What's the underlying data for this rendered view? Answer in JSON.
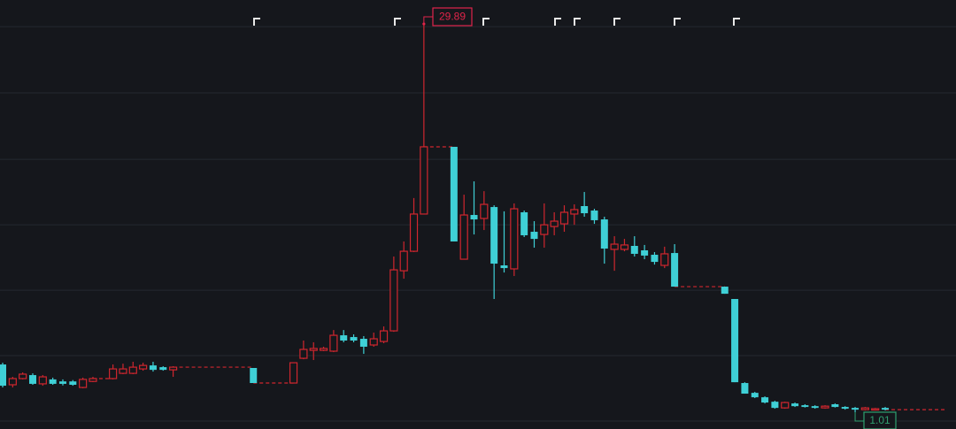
{
  "chart_data": {
    "type": "candlestick",
    "categories": [
      null,
      null,
      null,
      null,
      null,
      null,
      null,
      null,
      null,
      null,
      null,
      null,
      null,
      null,
      null,
      null,
      null,
      null,
      null,
      null,
      null,
      null,
      null,
      null,
      null,
      null,
      null,
      null,
      null,
      null,
      null,
      null,
      null,
      null,
      null,
      null,
      null,
      null,
      null,
      null,
      null,
      null,
      null,
      null,
      null,
      null,
      null,
      null,
      null,
      null,
      null,
      null,
      null,
      null,
      null,
      null,
      null,
      null,
      null,
      null,
      null,
      null,
      null,
      null,
      null,
      null,
      null,
      null,
      null,
      null,
      null,
      null,
      null,
      null,
      null,
      null,
      null,
      null,
      null,
      null,
      null,
      null,
      null,
      null,
      null,
      null,
      null,
      null,
      null,
      null,
      null,
      null,
      null,
      null,
      null
    ],
    "open": [
      4.56,
      3.05,
      3.51,
      3.77,
      3.12,
      3.45,
      3.3,
      3.3,
      2.85,
      3.3,
      null,
      3.51,
      3.9,
      3.9,
      4.23,
      4.49,
      4.36,
      4.16,
      null,
      null,
      null,
      null,
      null,
      null,
      null,
      4.3,
      null,
      null,
      null,
      3.18,
      5.02,
      5.61,
      5.61,
      5.55,
      6.73,
      6.6,
      6.47,
      6.01,
      6.27,
      7.06,
      11.53,
      12.98,
      15.75,
      null,
      null,
      20.75,
      12.39,
      15.68,
      15.42,
      16.27,
      11.93,
      11.67,
      15.88,
      14.43,
      14.23,
      14.82,
      15.02,
      15.75,
      16.34,
      16.01,
      15.35,
      13.12,
      13.12,
      13.38,
      13.05,
      12.72,
      11.93,
      12.85,
      null,
      null,
      null,
      null,
      10.35,
      9.43,
      3.18,
      2.45,
      2.12,
      1.79,
      1.33,
      1.66,
      1.53,
      1.46,
      1.33,
      1.6,
      1.4,
      1.33,
      1.2,
      1.2,
      1.33,
      null,
      null,
      null,
      null,
      null,
      null
    ],
    "high": [
      4.69,
      3.64,
      3.97,
      3.9,
      3.77,
      3.58,
      3.45,
      3.4,
      3.58,
      3.64,
      null,
      4.56,
      4.62,
      4.76,
      4.69,
      4.76,
      4.43,
      4.43,
      null,
      null,
      null,
      null,
      null,
      null,
      null,
      4.3,
      null,
      null,
      null,
      4.69,
      6.34,
      6.21,
      5.88,
      7.12,
      7.12,
      6.8,
      6.67,
      6.93,
      7.39,
      12.59,
      13.71,
      16.94,
      29.89,
      null,
      null,
      20.75,
      17.19,
      18.18,
      17.45,
      16.4,
      15.95,
      16.54,
      16.01,
      15.22,
      16.54,
      15.88,
      16.4,
      16.47,
      17.39,
      16.14,
      15.55,
      14.1,
      13.9,
      14.1,
      13.45,
      12.92,
      13.32,
      13.51,
      null,
      null,
      null,
      null,
      10.35,
      9.43,
      3.24,
      2.52,
      2.19,
      1.86,
      1.79,
      1.73,
      1.6,
      1.53,
      1.53,
      1.66,
      1.46,
      1.4,
      1.4,
      1.33,
      1.4,
      null,
      null,
      null,
      null,
      null,
      null
    ],
    "low": [
      2.85,
      2.85,
      3.45,
      3.05,
      2.98,
      3.05,
      3.0,
      2.98,
      2.79,
      3.25,
      null,
      3.45,
      3.84,
      3.84,
      4.1,
      4.03,
      4.1,
      3.64,
      null,
      null,
      null,
      null,
      null,
      null,
      null,
      3.18,
      null,
      null,
      null,
      3.18,
      4.95,
      4.89,
      5.55,
      5.48,
      6.21,
      6.21,
      5.35,
      5.88,
      6.14,
      6.99,
      10.94,
      12.92,
      15.75,
      null,
      null,
      13.71,
      12.39,
      14.23,
      14.56,
      9.43,
      11.4,
      11.14,
      14.04,
      13.25,
      13.25,
      14.17,
      14.43,
      14.95,
      15.55,
      15.02,
      12.06,
      11.53,
      12.98,
      12.59,
      12.39,
      11.99,
      11.73,
      10.35,
      null,
      null,
      null,
      null,
      9.82,
      3.24,
      2.39,
      2.06,
      1.66,
      1.27,
      1.27,
      1.4,
      1.36,
      1.27,
      1.27,
      1.36,
      1.2,
      1.01,
      1.14,
      1.14,
      1.14,
      null,
      null,
      null,
      null,
      null,
      null
    ],
    "close": [
      2.98,
      3.51,
      3.84,
      3.12,
      3.64,
      3.12,
      3.12,
      3.05,
      3.45,
      3.51,
      null,
      4.23,
      4.23,
      4.36,
      4.49,
      4.16,
      4.16,
      4.36,
      null,
      null,
      null,
      null,
      null,
      null,
      null,
      3.18,
      null,
      null,
      null,
      4.69,
      5.68,
      5.75,
      5.75,
      6.73,
      6.34,
      6.34,
      5.88,
      6.47,
      7.06,
      11.6,
      12.98,
      15.75,
      20.75,
      null,
      null,
      13.71,
      15.68,
      15.35,
      16.47,
      12.06,
      11.73,
      16.14,
      14.17,
      13.9,
      14.95,
      15.22,
      15.88,
      16.08,
      15.81,
      15.29,
      13.18,
      13.51,
      13.45,
      12.79,
      12.66,
      12.19,
      12.79,
      10.35,
      null,
      null,
      null,
      null,
      9.82,
      3.24,
      2.39,
      2.12,
      1.73,
      1.33,
      1.73,
      1.46,
      1.4,
      1.33,
      1.46,
      1.4,
      1.27,
      1.2,
      1.33,
      1.27,
      1.2,
      null,
      null,
      null,
      null,
      null,
      null
    ],
    "up_color": "#d0262e",
    "down_color": "#3fd0d6",
    "ylim": [
      -0.24,
      31.67
    ],
    "yticks": [
      29.69,
      24.76,
      19.82,
      14.95,
      10.08,
      5.22,
      0.35
    ],
    "grid": true,
    "high_label": 29.89,
    "high_label_color": "#e0244a",
    "low_label": 1.01,
    "low_label_color": "#2fa070"
  }
}
